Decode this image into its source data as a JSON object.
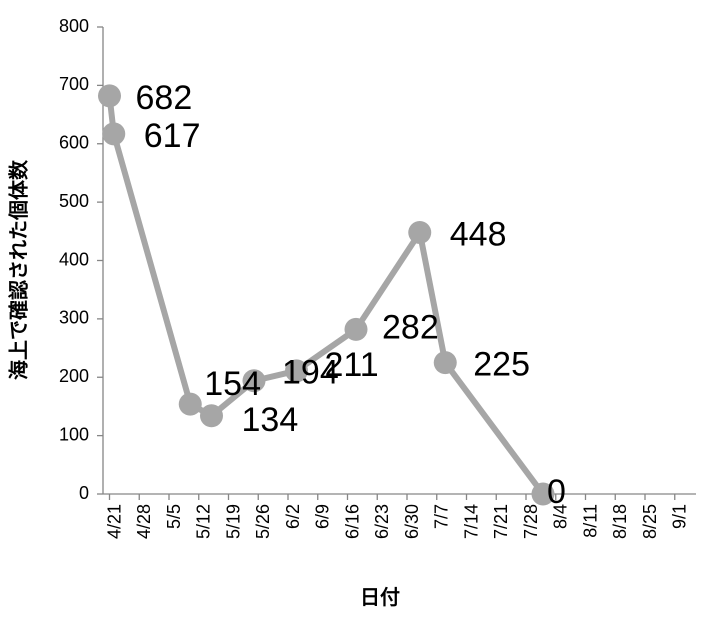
{
  "chart_data": {
    "type": "line",
    "title": "",
    "xlabel": "日付",
    "ylabel": "海上で確認された個体数",
    "ylim": [
      0,
      800
    ],
    "yticks": [
      0,
      100,
      200,
      300,
      400,
      500,
      600,
      700,
      800
    ],
    "grid": false,
    "legend": "none",
    "line_color": "#a6a6a6",
    "x_tick_labels": [
      "4/21",
      "4/28",
      "5/5",
      "5/12",
      "5/19",
      "5/26",
      "6/2",
      "6/9",
      "6/16",
      "6/23",
      "6/30",
      "7/7",
      "7/14",
      "7/21",
      "7/28",
      "8/4",
      "8/11",
      "8/18",
      "8/25",
      "9/1"
    ],
    "x_tick_start": "4/21",
    "x_tick_step_days": 7,
    "series": [
      {
        "points": [
          {
            "x": "4/21",
            "y": 682,
            "label": "682"
          },
          {
            "x": "4/22",
            "y": 617,
            "label": "617"
          },
          {
            "x": "5/10",
            "y": 154,
            "label": "154"
          },
          {
            "x": "5/15",
            "y": 134,
            "label": "134"
          },
          {
            "x": "5/25",
            "y": 194,
            "label": "194"
          },
          {
            "x": "6/4",
            "y": 211,
            "label": "211"
          },
          {
            "x": "6/18",
            "y": 282,
            "label": "282"
          },
          {
            "x": "7/3",
            "y": 448,
            "label": "448"
          },
          {
            "x": "7/9",
            "y": 225,
            "label": "225"
          },
          {
            "x": "8/1",
            "y": 0,
            "label": "0"
          }
        ]
      }
    ]
  }
}
